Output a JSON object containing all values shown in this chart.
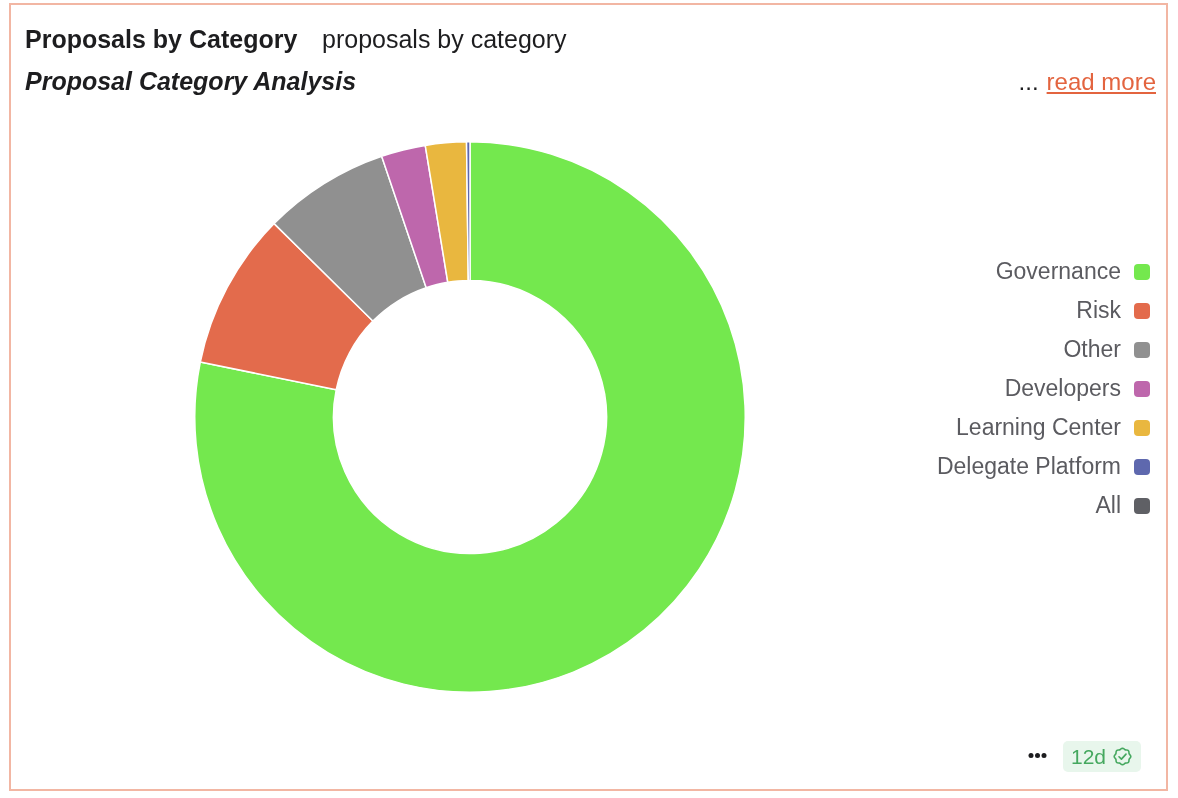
{
  "chart_data": {
    "type": "donut",
    "title": "Proposals by Category",
    "subtitle": "proposals by category",
    "categories": [
      "Governance",
      "Risk",
      "Other",
      "Developers",
      "Learning Center",
      "Delegate Platform",
      "All"
    ],
    "values": [
      78.2,
      9.2,
      7.4,
      2.6,
      2.4,
      0.2,
      0
    ],
    "colors": [
      "#74e84e",
      "#e36b4c",
      "#909090",
      "#be67ac",
      "#e9b73f",
      "#5e68ae",
      "#5f6065"
    ],
    "legend": "right",
    "annotations": [
      "Proposal Category Analysis",
      "...",
      "read more",
      "12d"
    ]
  }
}
